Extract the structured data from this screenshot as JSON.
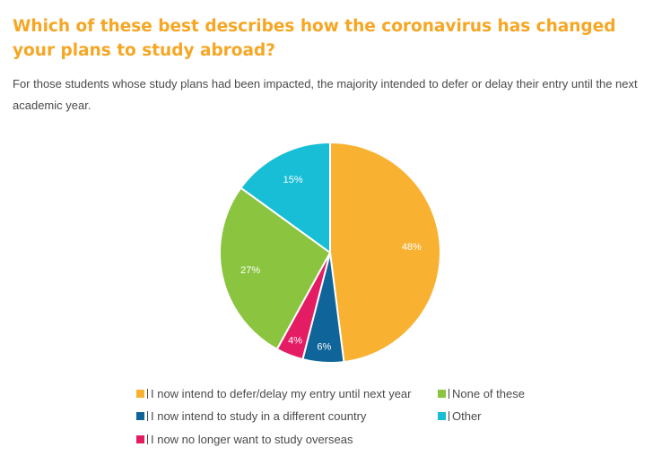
{
  "title": "Which of these best describes how the coronavirus has changed your plans to study abroad?",
  "subtitle": "For those students whose study plans had been impacted, the majority intended to defer or delay their entry until the next academic year.",
  "chart_data": {
    "type": "pie",
    "slices": [
      {
        "label": "I now intend to defer/delay my entry until next year",
        "value": 48,
        "display": "48%",
        "color": "#f8b131"
      },
      {
        "label": "I now intend to study in a different country",
        "value": 6,
        "display": "6%",
        "color": "#0f6499"
      },
      {
        "label": "I now no longer want to study overseas",
        "value": 4,
        "display": "4%",
        "color": "#e41c64"
      },
      {
        "label": "None of these",
        "value": 27,
        "display": "27%",
        "color": "#8bc43f"
      },
      {
        "label": "Other",
        "value": 15,
        "display": "15%",
        "color": "#17bed6"
      }
    ],
    "legend_position": "bottom"
  },
  "legend": [
    {
      "label": "I now intend to defer/delay my entry until next year",
      "color": "#f8b131"
    },
    {
      "label": "I now intend to study in a different country",
      "color": "#0f6499"
    },
    {
      "label": "I now no longer want to study overseas",
      "color": "#e41c64"
    },
    {
      "label": "None of these",
      "color": "#8bc43f"
    },
    {
      "label": "Other",
      "color": "#17bed6"
    }
  ]
}
